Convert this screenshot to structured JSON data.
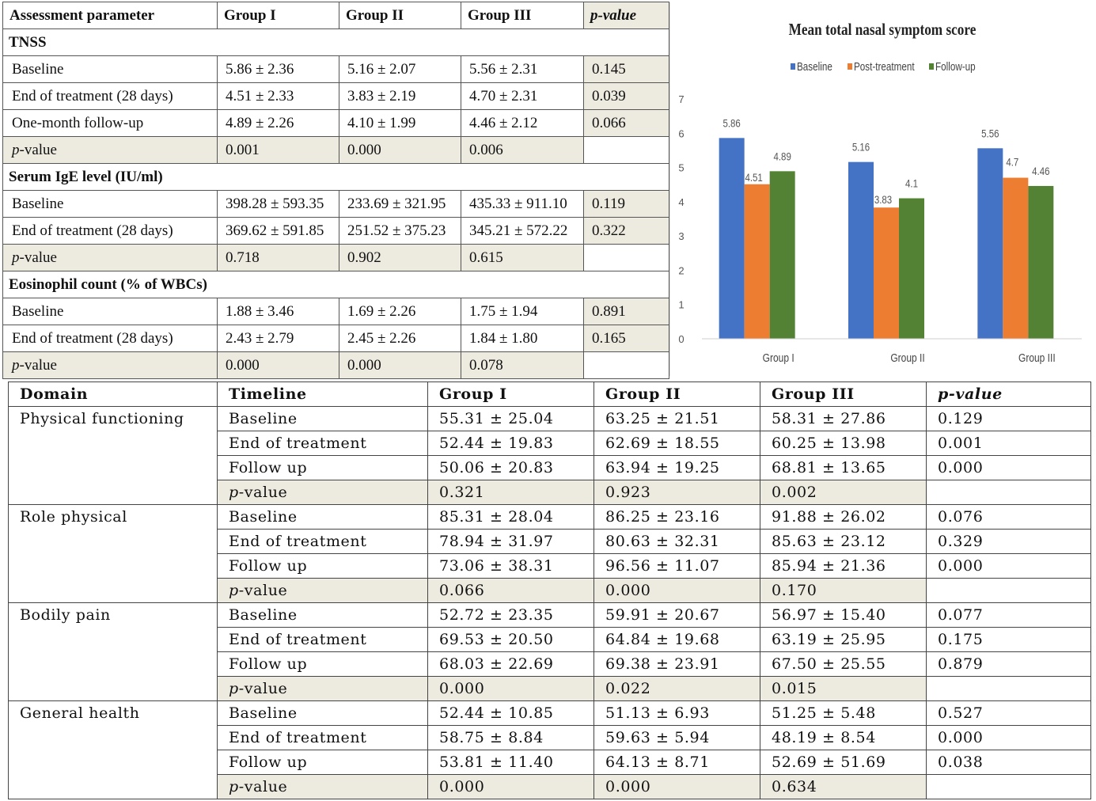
{
  "table1": {
    "headers": [
      "Assessment parameter",
      "Group I",
      "Group II",
      "Group III",
      "p-value"
    ],
    "sections": [
      {
        "title": "TNSS",
        "rows": [
          {
            "label": "Baseline",
            "g1": "5.86 ± 2.36",
            "g2": "5.16 ± 2.07",
            "g3": "5.56 ± 2.31",
            "p": "0.145"
          },
          {
            "label": "End of treatment (28 days)",
            "g1": "4.51 ± 2.33",
            "g2": "3.83 ± 2.19",
            "g3": "4.70 ± 2.31",
            "p": "0.039"
          },
          {
            "label": "One-month follow-up",
            "g1": "4.89 ± 2.26",
            "g2": "4.10 ± 1.99",
            "g3": "4.46 ± 2.12",
            "p": "0.066"
          }
        ],
        "pvalue_row": {
          "label_prefix": "p",
          "label_suffix": "-value",
          "g1": "0.001",
          "g2": "0.000",
          "g3": "0.006"
        }
      },
      {
        "title": "Serum IgE level (IU/ml)",
        "rows": [
          {
            "label": "Baseline",
            "g1": "398.28 ± 593.35",
            "g2": "233.69 ± 321.95",
            "g3": "435.33 ± 911.10",
            "p": "0.119"
          },
          {
            "label": "End of treatment (28 days)",
            "g1": "369.62 ± 591.85",
            "g2": "251.52 ± 375.23",
            "g3": "345.21 ± 572.22",
            "p": "0.322"
          }
        ],
        "pvalue_row": {
          "label_prefix": "p",
          "label_suffix": "-value",
          "g1": "0.718",
          "g2": "0.902",
          "g3": "0.615"
        }
      },
      {
        "title": "Eosinophil count (% of WBCs)",
        "rows": [
          {
            "label": "Baseline",
            "g1": "1.88 ± 3.46",
            "g2": "1.69 ± 2.26",
            "g3": "1.75 ± 1.94",
            "p": "0.891"
          },
          {
            "label": "End of treatment (28 days)",
            "g1": "2.43 ± 2.79",
            "g2": "2.45 ± 2.26",
            "g3": "1.84 ± 1.80",
            "p": "0.165"
          }
        ],
        "pvalue_row": {
          "label_prefix": "p",
          "label_suffix": "-value",
          "g1": "0.000",
          "g2": "0.000",
          "g3": "0.078"
        }
      }
    ]
  },
  "chart_data": {
    "type": "bar",
    "title": "Mean total nasal symptom score",
    "categories": [
      "Group I",
      "Group II",
      "Group III"
    ],
    "series": [
      {
        "name": "Baseline",
        "values": [
          5.86,
          5.16,
          5.56
        ],
        "color": "#4472c4"
      },
      {
        "name": "Post-treatment",
        "values": [
          4.51,
          3.83,
          4.7
        ],
        "color": "#ed7d31"
      },
      {
        "name": "Follow-up",
        "values": [
          4.89,
          4.1,
          4.46
        ],
        "color": "#548235"
      }
    ],
    "data_labels": [
      [
        "5.86",
        "4.51",
        "4.89"
      ],
      [
        "5.16",
        "3.83",
        "4.1"
      ],
      [
        "5.56",
        "4.7",
        "4.46"
      ]
    ],
    "ylim": [
      0,
      7
    ],
    "yticks": [
      "0",
      "1",
      "2",
      "3",
      "4",
      "5",
      "6",
      "7"
    ],
    "legend_position": "top",
    "grid": false
  },
  "table2": {
    "headers": [
      "Domain",
      "Timeline",
      "Group I",
      "Group II",
      "Group III",
      "p-value"
    ],
    "domains": [
      {
        "name": "Physical functioning",
        "rows": [
          {
            "timeline": "Baseline",
            "g1": "55.31 ± 25.04",
            "g2": "63.25 ± 21.51",
            "g3": "58.31 ± 27.86",
            "p": "0.129"
          },
          {
            "timeline": "End of treatment",
            "g1": "52.44 ± 19.83",
            "g2": "62.69 ± 18.55",
            "g3": "60.25 ± 13.98",
            "p": "0.001"
          },
          {
            "timeline": "Follow up",
            "g1": "50.06 ± 20.83",
            "g2": "63.94 ± 19.25",
            "g3": "68.81 ± 13.65",
            "p": "0.000"
          }
        ],
        "pvalue_row": {
          "g1": "0.321",
          "g2": "0.923",
          "g3": "0.002"
        }
      },
      {
        "name": "Role physical",
        "rows": [
          {
            "timeline": "Baseline",
            "g1": "85.31 ± 28.04",
            "g2": "86.25 ± 23.16",
            "g3": "91.88 ± 26.02",
            "p": "0.076"
          },
          {
            "timeline": "End of treatment",
            "g1": "78.94 ± 31.97",
            "g2": "80.63 ± 32.31",
            "g3": "85.63 ± 23.12",
            "p": "0.329"
          },
          {
            "timeline": "Follow up",
            "g1": "73.06 ± 38.31",
            "g2": "96.56 ± 11.07",
            "g3": "85.94 ± 21.36",
            "p": "0.000"
          }
        ],
        "pvalue_row": {
          "g1": "0.066",
          "g2": "0.000",
          "g3": "0.170"
        }
      },
      {
        "name": "Bodily pain",
        "rows": [
          {
            "timeline": "Baseline",
            "g1": "52.72 ± 23.35",
            "g2": "59.91 ± 20.67",
            "g3": "56.97 ± 15.40",
            "p": "0.077"
          },
          {
            "timeline": "End of treatment",
            "g1": "69.53 ± 20.50",
            "g2": "64.84 ± 19.68",
            "g3": "63.19 ± 25.95",
            "p": "0.175"
          },
          {
            "timeline": "Follow up",
            "g1": "68.03 ± 22.69",
            "g2": "69.38 ± 23.91",
            "g3": "67.50 ± 25.55",
            "p": "0.879"
          }
        ],
        "pvalue_row": {
          "g1": "0.000",
          "g2": "0.022",
          "g3": "0.015"
        }
      },
      {
        "name": "General health",
        "rows": [
          {
            "timeline": "Baseline",
            "g1": "52.44 ± 10.85",
            "g2": "51.13 ± 6.93",
            "g3": "51.25 ± 5.48",
            "p": "0.527"
          },
          {
            "timeline": "End of treatment",
            "g1": "58.75 ± 8.84",
            "g2": "59.63 ± 5.94",
            "g3": "48.19 ± 8.54",
            "p": "0.000"
          },
          {
            "timeline": "Follow up",
            "g1": "53.81 ± 11.40",
            "g2": "64.13 ± 8.71",
            "g3": "52.69 ± 51.69",
            "p": "0.038"
          }
        ],
        "pvalue_row": {
          "g1": "0.000",
          "g2": "0.000",
          "g3": "0.634"
        }
      }
    ],
    "pvalue_label_prefix": "p",
    "pvalue_label_suffix": "-value"
  }
}
